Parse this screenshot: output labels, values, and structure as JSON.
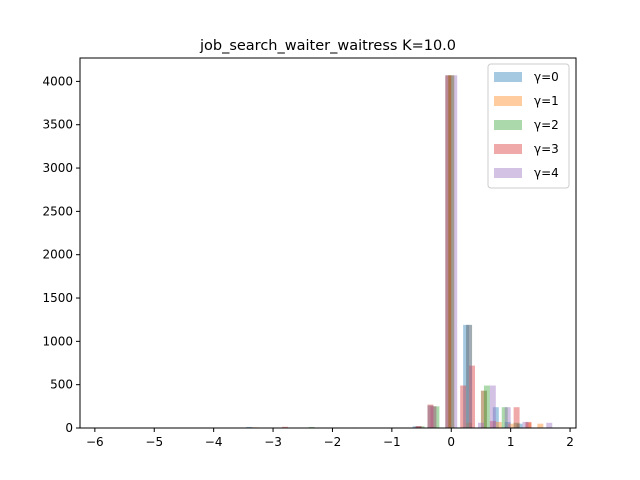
{
  "chart_data": {
    "type": "bar",
    "title": "job_search_waiter_waitress K=10.0",
    "xlabel": "",
    "ylabel": "",
    "xlim": [
      -6.25,
      2.1
    ],
    "ylim": [
      0,
      4270
    ],
    "xticks": [
      -6,
      -5,
      -4,
      -3,
      -2,
      -1,
      0,
      1,
      2
    ],
    "xtick_labels": [
      "−6",
      "−5",
      "−4",
      "−3",
      "−2",
      "−1",
      "0",
      "1",
      "2"
    ],
    "yticks": [
      0,
      500,
      1000,
      1500,
      2000,
      2500,
      3000,
      3500,
      4000
    ],
    "ytick_labels": [
      "0",
      "500",
      "1000",
      "1500",
      "2000",
      "2500",
      "3000",
      "3500",
      "4000"
    ],
    "legend_position": "top-right",
    "bar_width": 0.1,
    "opacity": 0.4,
    "series": [
      {
        "name": "γ=0",
        "color": "#1f77b4",
        "bins": [
          {
            "x": -5.95,
            "v": 2
          },
          {
            "x": -3.4,
            "v": 12
          },
          {
            "x": -2.35,
            "v": 6
          },
          {
            "x": -0.6,
            "v": 20
          },
          {
            "x": -0.35,
            "v": 260
          },
          {
            "x": -0.05,
            "v": 4070
          },
          {
            "x": 0.25,
            "v": 1190
          },
          {
            "x": 0.55,
            "v": 430
          },
          {
            "x": 0.75,
            "v": 240
          },
          {
            "x": 0.95,
            "v": 70
          },
          {
            "x": 1.15,
            "v": 50
          }
        ]
      },
      {
        "name": "γ=1",
        "color": "#ff7f0e",
        "bins": [
          {
            "x": -3.3,
            "v": 8
          },
          {
            "x": -0.55,
            "v": 18
          },
          {
            "x": -0.3,
            "v": 250
          },
          {
            "x": 0.0,
            "v": 4070
          },
          {
            "x": 0.3,
            "v": 60
          },
          {
            "x": 0.55,
            "v": 430
          },
          {
            "x": 0.8,
            "v": 70
          },
          {
            "x": 1.0,
            "v": 50
          },
          {
            "x": 1.3,
            "v": 60
          },
          {
            "x": 1.5,
            "v": 50
          }
        ]
      },
      {
        "name": "γ=2",
        "color": "#2ca02c",
        "bins": [
          {
            "x": -5.8,
            "v": 2
          },
          {
            "x": -2.35,
            "v": 12
          },
          {
            "x": -1.65,
            "v": 6
          },
          {
            "x": -0.5,
            "v": 20
          },
          {
            "x": -0.25,
            "v": 250
          },
          {
            "x": 0.0,
            "v": 4070
          },
          {
            "x": 0.3,
            "v": 1190
          },
          {
            "x": 0.6,
            "v": 490
          },
          {
            "x": 0.9,
            "v": 240
          },
          {
            "x": 1.1,
            "v": 60
          }
        ]
      },
      {
        "name": "γ=3",
        "color": "#d62728",
        "bins": [
          {
            "x": -2.8,
            "v": 14
          },
          {
            "x": -1.9,
            "v": 6
          },
          {
            "x": -0.55,
            "v": 22
          },
          {
            "x": -0.35,
            "v": 270
          },
          {
            "x": -0.05,
            "v": 4070
          },
          {
            "x": 0.2,
            "v": 490
          },
          {
            "x": 0.35,
            "v": 720
          },
          {
            "x": 0.7,
            "v": 80
          },
          {
            "x": 1.1,
            "v": 240
          },
          {
            "x": 1.3,
            "v": 70
          }
        ]
      },
      {
        "name": "γ=4",
        "color": "#9467bd",
        "bins": [
          {
            "x": -0.55,
            "v": 18
          },
          {
            "x": -0.3,
            "v": 250
          },
          {
            "x": 0.05,
            "v": 4070
          },
          {
            "x": 0.3,
            "v": 1190
          },
          {
            "x": 0.5,
            "v": 60
          },
          {
            "x": 0.7,
            "v": 490
          },
          {
            "x": 0.95,
            "v": 240
          },
          {
            "x": 1.25,
            "v": 70
          },
          {
            "x": 1.65,
            "v": 60
          }
        ]
      }
    ]
  }
}
